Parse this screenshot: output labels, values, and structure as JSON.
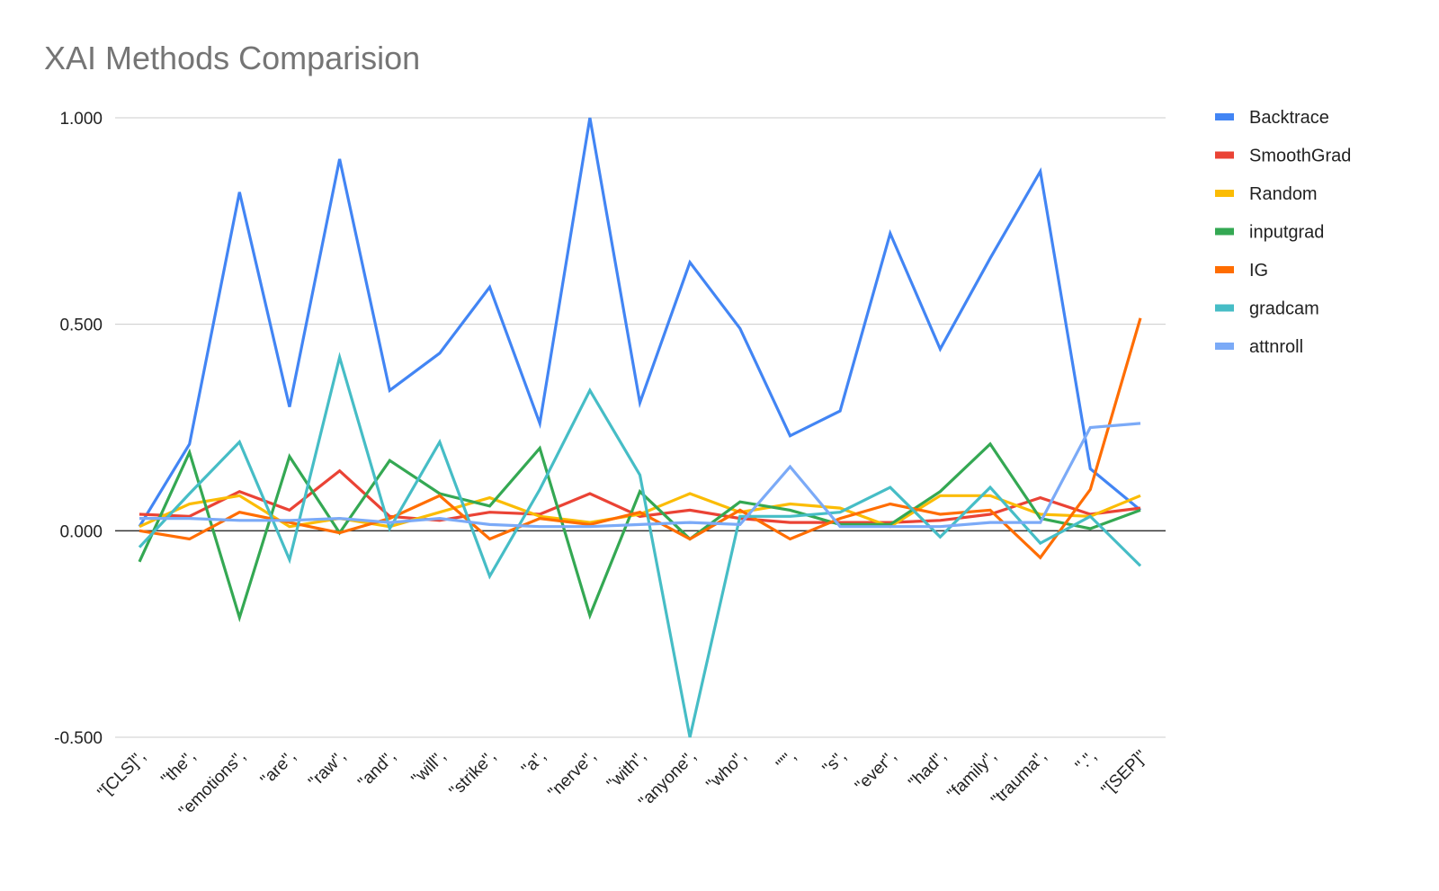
{
  "chart_data": {
    "type": "line",
    "title": "XAI Methods Comparision",
    "xlabel": "",
    "ylabel": "",
    "categories": [
      "\"[CLS]\",",
      "\"the\",",
      "\"emotions\",",
      "\"are\",",
      "\"raw\",",
      "\"and\",",
      "\"will\",",
      "\"strike\",",
      "\"a\",",
      "\"nerve\",",
      "\"with\",",
      "\"anyone\",",
      "\"who\",",
      "\"'\",",
      "\"s\",",
      "\"ever\",",
      "\"had\",",
      "\"family\",",
      "\"trauma\",",
      "\".\",",
      "\"[SEP]\""
    ],
    "ylim": [
      -0.5,
      1.0
    ],
    "yticks": [
      1.0,
      0.5,
      0.0,
      -0.5
    ],
    "ytick_labels": [
      "1.000",
      "0.500",
      "0.000",
      "-0.500"
    ],
    "grid": true,
    "legend_position": "right",
    "series": [
      {
        "name": "Backtrace",
        "color": "#4285f4",
        "values": [
          0.01,
          0.21,
          0.82,
          0.3,
          0.9,
          0.34,
          0.43,
          0.59,
          0.26,
          1.0,
          0.31,
          0.65,
          0.49,
          0.23,
          0.29,
          0.72,
          0.44,
          0.66,
          0.87,
          0.15,
          0.05
        ]
      },
      {
        "name": "SmoothGrad",
        "color": "#ea4335",
        "values": [
          0.04,
          0.035,
          0.095,
          0.05,
          0.145,
          0.035,
          0.025,
          0.045,
          0.04,
          0.09,
          0.035,
          0.05,
          0.03,
          0.02,
          0.02,
          0.02,
          0.025,
          0.04,
          0.08,
          0.04,
          0.055
        ]
      },
      {
        "name": "Random",
        "color": "#fbbc04",
        "values": [
          0.01,
          0.065,
          0.085,
          0.01,
          0.03,
          0.01,
          0.045,
          0.08,
          0.035,
          0.02,
          0.04,
          0.09,
          0.045,
          0.065,
          0.055,
          0.01,
          0.085,
          0.085,
          0.04,
          0.035,
          0.085
        ]
      },
      {
        "name": "inputgrad",
        "color": "#34a853",
        "values": [
          -0.075,
          0.19,
          -0.21,
          0.18,
          -0.005,
          0.17,
          0.09,
          0.06,
          0.2,
          -0.205,
          0.095,
          -0.02,
          0.07,
          0.05,
          0.015,
          0.015,
          0.095,
          0.21,
          0.03,
          0.005,
          0.05
        ]
      },
      {
        "name": "IG",
        "color": "#ff6d01",
        "values": [
          0.0,
          -0.02,
          0.045,
          0.02,
          -0.005,
          0.03,
          0.085,
          -0.02,
          0.03,
          0.015,
          0.045,
          -0.02,
          0.05,
          -0.02,
          0.03,
          0.065,
          0.04,
          0.05,
          -0.065,
          0.1,
          0.515
        ]
      },
      {
        "name": "gradcam",
        "color": "#46bdc6",
        "values": [
          -0.04,
          0.09,
          0.215,
          -0.07,
          0.42,
          0.005,
          0.215,
          -0.11,
          0.1,
          0.34,
          0.135,
          -0.5,
          0.035,
          0.035,
          0.045,
          0.105,
          -0.015,
          0.105,
          -0.03,
          0.035,
          -0.085
        ]
      },
      {
        "name": "attnroll",
        "color": "#7baaf7",
        "values": [
          0.03,
          0.03,
          0.025,
          0.025,
          0.03,
          0.02,
          0.03,
          0.015,
          0.01,
          0.01,
          0.015,
          0.02,
          0.015,
          0.155,
          0.01,
          0.01,
          0.01,
          0.02,
          0.02,
          0.25,
          0.26
        ]
      }
    ]
  }
}
